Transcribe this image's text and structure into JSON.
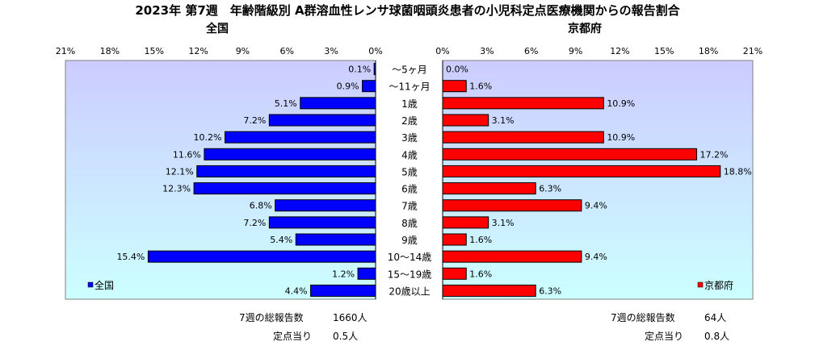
{
  "title": "2023年 第7週　年齢階級別 A群溶血性レンサ球菌咽頭炎患者の小児科定点医療機関からの報告割合",
  "left_panel": {
    "heading": "全国",
    "legend": "全国",
    "total_label": "7週の総報告数",
    "total_value": "1660人",
    "per_site_label": "定点当り",
    "per_site_value": "0.5人"
  },
  "right_panel": {
    "heading": "京都府",
    "legend": "京都府",
    "total_label": "7週の総報告数",
    "total_value": "64人",
    "per_site_label": "定点当り",
    "per_site_value": "0.8人"
  },
  "colors": {
    "national_bar": "#0000FF",
    "kyoto_bar": "#FF0000",
    "plot_bg_top": "#CCCCFF",
    "plot_bg_bottom": "#CCFFFF"
  },
  "chart_data": [
    {
      "type": "bar",
      "orientation": "horizontal",
      "direction": "right-to-left",
      "title": "全国",
      "categories": [
        "～5ヶ月",
        "～11ヶ月",
        "1歳",
        "2歳",
        "3歳",
        "4歳",
        "5歳",
        "6歳",
        "7歳",
        "8歳",
        "9歳",
        "10～14歳",
        "15～19歳",
        "20歳以上"
      ],
      "series": [
        {
          "name": "全国",
          "values": [
            0.1,
            0.9,
            5.1,
            7.2,
            10.2,
            11.6,
            12.1,
            12.3,
            6.8,
            7.2,
            5.4,
            15.4,
            1.2,
            4.4
          ]
        }
      ],
      "value_labels": [
        "0.1%",
        "0.9%",
        "5.1%",
        "7.2%",
        "10.2%",
        "11.6%",
        "12.1%",
        "12.3%",
        "6.8%",
        "7.2%",
        "5.4%",
        "15.4%",
        "1.2%",
        "4.4%"
      ],
      "xlim": [
        0,
        21
      ],
      "xticks": [
        "0%",
        "3%",
        "6%",
        "9%",
        "12%",
        "15%",
        "18%",
        "21%"
      ],
      "legend_position": "bottom-left",
      "grid": false
    },
    {
      "type": "bar",
      "orientation": "horizontal",
      "direction": "left-to-right",
      "title": "京都府",
      "categories": [
        "～5ヶ月",
        "～11ヶ月",
        "1歳",
        "2歳",
        "3歳",
        "4歳",
        "5歳",
        "6歳",
        "7歳",
        "8歳",
        "9歳",
        "10～14歳",
        "15～19歳",
        "20歳以上"
      ],
      "series": [
        {
          "name": "京都府",
          "values": [
            0.0,
            1.6,
            10.9,
            3.1,
            10.9,
            17.2,
            18.8,
            6.3,
            9.4,
            3.1,
            1.6,
            9.4,
            1.6,
            6.3
          ]
        }
      ],
      "value_labels": [
        "0.0%",
        "1.6%",
        "10.9%",
        "3.1%",
        "10.9%",
        "17.2%",
        "18.8%",
        "6.3%",
        "9.4%",
        "3.1%",
        "1.6%",
        "9.4%",
        "1.6%",
        "6.3%"
      ],
      "xlim": [
        0,
        21
      ],
      "xticks": [
        "0%",
        "3%",
        "6%",
        "9%",
        "12%",
        "15%",
        "18%",
        "21%"
      ],
      "legend_position": "bottom-right",
      "grid": false
    }
  ]
}
